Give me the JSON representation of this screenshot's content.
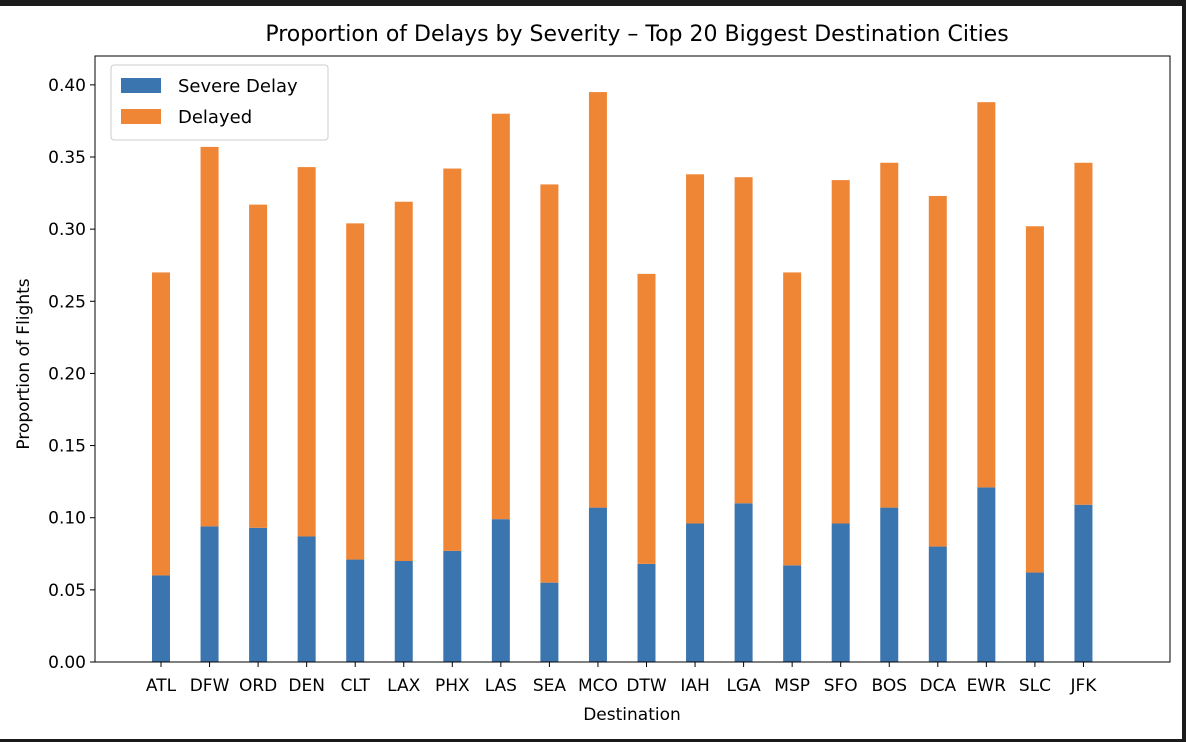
{
  "chart_data": {
    "type": "bar",
    "stacked": true,
    "title": "Proportion of Delays by Severity – Top 20 Biggest Destination Cities",
    "xlabel": "Destination",
    "ylabel": "Proportion of Flights",
    "ylim": [
      0,
      0.42
    ],
    "yticks": [
      "0.00",
      "0.05",
      "0.10",
      "0.15",
      "0.20",
      "0.25",
      "0.30",
      "0.35",
      "0.40"
    ],
    "categories": [
      "ATL",
      "DFW",
      "ORD",
      "DEN",
      "CLT",
      "LAX",
      "PHX",
      "LAS",
      "SEA",
      "MCO",
      "DTW",
      "IAH",
      "LGA",
      "MSP",
      "SFO",
      "BOS",
      "DCA",
      "EWR",
      "SLC",
      "JFK"
    ],
    "series": [
      {
        "name": "Severe Delay",
        "color": "#3b75af",
        "values": [
          0.06,
          0.094,
          0.093,
          0.087,
          0.071,
          0.07,
          0.077,
          0.099,
          0.055,
          0.107,
          0.068,
          0.096,
          0.11,
          0.067,
          0.096,
          0.107,
          0.08,
          0.121,
          0.062,
          0.109
        ]
      },
      {
        "name": "Delayed",
        "color": "#ef8636",
        "values": [
          0.21,
          0.263,
          0.224,
          0.256,
          0.233,
          0.249,
          0.265,
          0.281,
          0.276,
          0.288,
          0.201,
          0.242,
          0.226,
          0.203,
          0.238,
          0.239,
          0.243,
          0.267,
          0.24,
          0.237
        ]
      }
    ],
    "grid": false,
    "legend": "top-left"
  }
}
